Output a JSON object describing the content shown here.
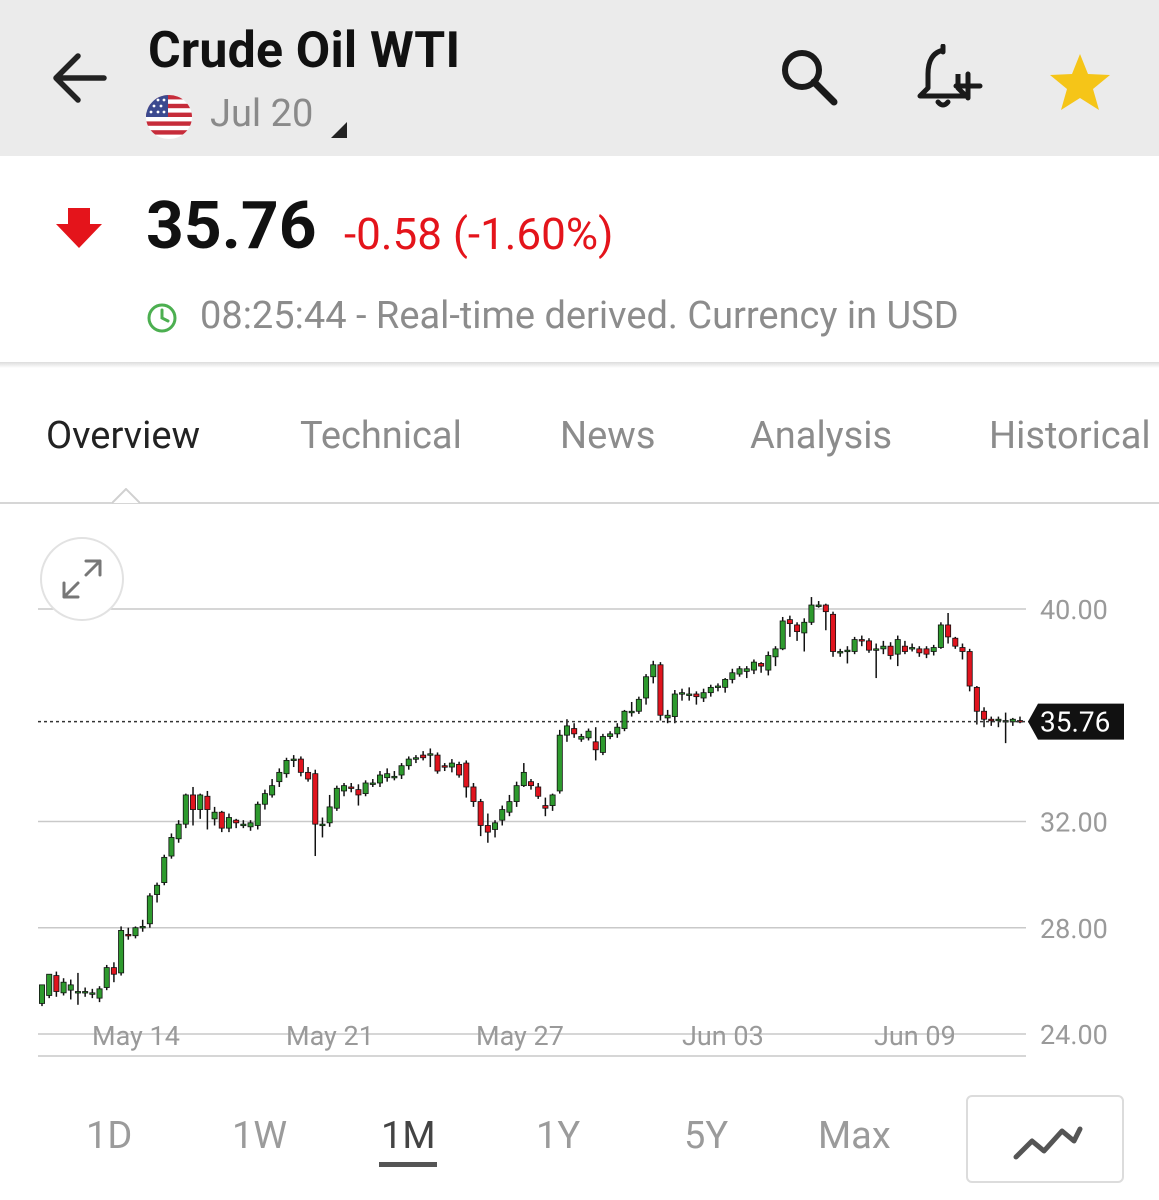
{
  "header": {
    "title": "Crude Oil WTI",
    "contract": "Jul 20",
    "icons": [
      "back-arrow-icon",
      "us-flag-icon",
      "search-icon",
      "bell-plus-icon",
      "star-icon"
    ],
    "star_color": "#f5c518"
  },
  "quote": {
    "price": "35.76",
    "change": "-0.58 (-1.60%)",
    "status": "08:25:44 - Real-time derived. Currency in USD",
    "change_color": "#e4141b",
    "clock_color": "#4caf50"
  },
  "tabs": [
    "Overview",
    "Technical",
    "News",
    "Analysis",
    "Historical"
  ],
  "active_tab": "Overview",
  "ranges": [
    "1D",
    "1W",
    "1M",
    "1Y",
    "5Y",
    "Max"
  ],
  "active_range": "1M",
  "chart_data": {
    "type": "candlestick",
    "y_axis": {
      "ticks": [
        "40.00",
        "32.00",
        "28.00",
        "24.00"
      ],
      "ylim": [
        24,
        40.5
      ]
    },
    "x_axis": {
      "ticks": [
        "May 14",
        "May 21",
        "May 27",
        "Jun 03",
        "Jun 09"
      ]
    },
    "last_price_label": "35.76",
    "up_color": "#2e9a2e",
    "down_color": "#e0141e",
    "candles": [
      [
        25.15,
        25.85,
        25.8,
        25.05
      ],
      [
        25.45,
        26.25,
        26.2,
        25.35
      ],
      [
        26.2,
        25.6,
        26.35,
        25.4
      ],
      [
        25.55,
        25.95,
        26.1,
        25.45
      ],
      [
        25.65,
        25.85,
        26.05,
        25.3
      ],
      [
        25.55,
        25.6,
        26.3,
        25.1
      ],
      [
        25.55,
        25.6,
        25.75,
        25.4
      ],
      [
        25.5,
        25.55,
        25.7,
        25.35
      ],
      [
        25.35,
        25.7,
        25.8,
        25.2
      ],
      [
        25.75,
        26.5,
        26.6,
        25.65
      ],
      [
        26.5,
        26.25,
        26.7,
        25.95
      ],
      [
        26.3,
        27.9,
        28.05,
        26.2
      ],
      [
        27.75,
        27.7,
        28.0,
        27.55
      ],
      [
        27.7,
        28.0,
        28.05,
        27.6
      ],
      [
        28.05,
        28.05,
        28.3,
        27.85
      ],
      [
        28.15,
        29.2,
        29.3,
        28.0
      ],
      [
        29.25,
        29.6,
        29.7,
        28.95
      ],
      [
        29.7,
        30.65,
        30.75,
        29.6
      ],
      [
        30.7,
        31.4,
        31.55,
        30.6
      ],
      [
        31.35,
        31.9,
        32.05,
        31.2
      ],
      [
        31.9,
        33.0,
        33.05,
        31.75
      ],
      [
        33.0,
        32.45,
        33.3,
        31.85
      ],
      [
        32.45,
        33.0,
        33.05,
        32.1
      ],
      [
        32.95,
        32.45,
        33.15,
        31.7
      ],
      [
        32.1,
        32.35,
        32.55,
        31.85
      ],
      [
        32.35,
        31.75,
        32.4,
        31.6
      ],
      [
        31.75,
        32.15,
        32.3,
        31.6
      ],
      [
        32.05,
        31.95,
        32.1,
        31.75
      ],
      [
        31.9,
        31.9,
        32.05,
        31.75
      ],
      [
        31.8,
        31.95,
        32.05,
        31.65
      ],
      [
        31.85,
        32.65,
        32.75,
        31.7
      ],
      [
        32.65,
        33.05,
        33.2,
        32.45
      ],
      [
        33.0,
        33.35,
        33.6,
        32.9
      ],
      [
        33.5,
        33.85,
        34.0,
        33.3
      ],
      [
        33.8,
        34.3,
        34.4,
        33.65
      ],
      [
        34.3,
        34.35,
        34.5,
        34.05
      ],
      [
        34.35,
        33.85,
        34.45,
        33.7
      ],
      [
        33.85,
        33.6,
        34.05,
        33.5
      ],
      [
        33.8,
        31.9,
        33.95,
        30.7
      ],
      [
        31.9,
        31.9,
        32.15,
        31.4
      ],
      [
        31.95,
        32.55,
        33.0,
        31.8
      ],
      [
        32.5,
        33.25,
        33.35,
        32.4
      ],
      [
        33.15,
        33.35,
        33.45,
        32.95
      ],
      [
        33.3,
        33.25,
        33.45,
        33.1
      ],
      [
        33.2,
        33.0,
        33.4,
        32.6
      ],
      [
        33.05,
        33.45,
        33.55,
        32.95
      ],
      [
        33.45,
        33.45,
        33.6,
        33.3
      ],
      [
        33.45,
        33.75,
        33.9,
        33.3
      ],
      [
        33.65,
        33.8,
        34.0,
        33.5
      ],
      [
        33.7,
        33.7,
        33.9,
        33.55
      ],
      [
        33.75,
        34.1,
        34.2,
        33.6
      ],
      [
        34.1,
        34.35,
        34.45,
        33.95
      ],
      [
        34.35,
        34.4,
        34.5,
        34.2
      ],
      [
        34.5,
        34.4,
        34.65,
        34.3
      ],
      [
        34.5,
        34.55,
        34.75,
        34.05
      ],
      [
        34.5,
        33.9,
        34.6,
        33.8
      ],
      [
        34.1,
        34.05,
        34.2,
        33.9
      ],
      [
        34.05,
        34.2,
        34.35,
        33.85
      ],
      [
        34.15,
        33.75,
        34.25,
        33.65
      ],
      [
        34.2,
        33.3,
        34.3,
        32.9
      ],
      [
        33.3,
        32.75,
        33.45,
        32.55
      ],
      [
        32.75,
        31.85,
        32.85,
        31.45
      ],
      [
        31.85,
        31.6,
        32.3,
        31.2
      ],
      [
        31.7,
        31.95,
        32.05,
        31.4
      ],
      [
        32.05,
        32.45,
        32.6,
        31.85
      ],
      [
        32.35,
        32.75,
        33.0,
        32.2
      ],
      [
        32.75,
        33.35,
        33.5,
        32.55
      ],
      [
        33.35,
        33.85,
        34.2,
        33.3
      ],
      [
        33.5,
        33.35,
        33.6,
        33.2
      ],
      [
        33.3,
        32.95,
        33.45,
        32.85
      ],
      [
        32.6,
        32.5,
        32.9,
        32.2
      ],
      [
        32.6,
        33.0,
        33.05,
        32.4
      ],
      [
        33.15,
        35.25,
        35.45,
        33.05
      ],
      [
        35.25,
        35.6,
        35.85,
        35.0
      ],
      [
        35.5,
        35.3,
        35.7,
        35.15
      ],
      [
        35.1,
        35.2,
        35.3,
        35.0
      ],
      [
        35.15,
        35.4,
        35.5,
        35.05
      ],
      [
        35.0,
        34.7,
        35.55,
        34.3
      ],
      [
        34.6,
        35.2,
        35.3,
        34.5
      ],
      [
        35.2,
        35.3,
        35.4,
        35.1
      ],
      [
        35.3,
        35.55,
        35.7,
        35.15
      ],
      [
        35.5,
        36.15,
        36.2,
        35.4
      ],
      [
        36.1,
        36.15,
        36.5,
        35.95
      ],
      [
        36.15,
        36.6,
        36.7,
        36.05
      ],
      [
        36.65,
        37.45,
        37.55,
        36.4
      ],
      [
        37.45,
        37.9,
        38.05,
        37.2
      ],
      [
        37.9,
        36.0,
        38.0,
        35.8
      ],
      [
        35.9,
        36.0,
        36.2,
        35.7
      ],
      [
        35.95,
        36.8,
        36.95,
        35.7
      ],
      [
        36.8,
        36.85,
        37.0,
        36.55
      ],
      [
        36.8,
        36.8,
        37.05,
        36.55
      ],
      [
        36.8,
        36.7,
        36.9,
        36.4
      ],
      [
        36.65,
        36.85,
        37.0,
        36.5
      ],
      [
        36.85,
        37.05,
        37.15,
        36.7
      ],
      [
        37.1,
        37.1,
        37.2,
        36.9
      ],
      [
        37.05,
        37.35,
        37.4,
        36.85
      ],
      [
        37.35,
        37.6,
        37.75,
        37.2
      ],
      [
        37.55,
        37.75,
        37.85,
        37.45
      ],
      [
        37.65,
        37.75,
        37.85,
        37.4
      ],
      [
        37.7,
        38.0,
        38.1,
        37.55
      ],
      [
        37.95,
        37.85,
        38.0,
        37.6
      ],
      [
        37.7,
        38.25,
        38.4,
        37.5
      ],
      [
        38.2,
        38.5,
        38.6,
        37.85
      ],
      [
        38.5,
        39.55,
        39.7,
        38.45
      ],
      [
        39.6,
        39.45,
        39.75,
        38.95
      ],
      [
        39.4,
        39.15,
        39.5,
        38.8
      ],
      [
        39.1,
        39.5,
        39.65,
        38.4
      ],
      [
        39.5,
        40.15,
        40.45,
        39.4
      ],
      [
        40.1,
        40.15,
        40.3,
        40.05
      ],
      [
        40.15,
        39.9,
        40.2,
        39.2
      ],
      [
        39.8,
        38.4,
        39.9,
        38.2
      ],
      [
        38.4,
        38.4,
        38.5,
        38.2
      ],
      [
        38.4,
        38.45,
        38.6,
        37.95
      ],
      [
        38.4,
        38.85,
        38.95,
        38.3
      ],
      [
        38.85,
        38.8,
        39.0,
        38.6
      ],
      [
        38.8,
        38.45,
        38.9,
        38.35
      ],
      [
        38.45,
        38.5,
        38.7,
        37.4
      ],
      [
        38.5,
        38.6,
        38.8,
        38.3
      ],
      [
        38.6,
        38.25,
        38.75,
        38.1
      ],
      [
        38.3,
        38.85,
        39.0,
        37.85
      ],
      [
        38.6,
        38.4,
        38.8,
        38.3
      ],
      [
        38.5,
        38.55,
        38.7,
        38.4
      ],
      [
        38.5,
        38.35,
        38.6,
        38.2
      ],
      [
        38.5,
        38.3,
        38.6,
        38.15
      ],
      [
        38.4,
        38.55,
        38.65,
        38.25
      ],
      [
        38.55,
        39.4,
        39.5,
        38.5
      ],
      [
        39.4,
        38.95,
        39.85,
        38.7
      ],
      [
        38.9,
        38.6,
        38.95,
        38.5
      ],
      [
        38.55,
        38.4,
        38.7,
        38.1
      ],
      [
        38.4,
        37.1,
        38.5,
        36.9
      ],
      [
        37.05,
        36.15,
        37.1,
        35.65
      ],
      [
        36.15,
        35.85,
        36.3,
        35.55
      ],
      [
        35.85,
        35.8,
        35.95,
        35.6
      ],
      [
        35.8,
        35.85,
        35.95,
        35.55
      ],
      [
        35.8,
        35.8,
        36.1,
        34.95
      ],
      [
        35.75,
        35.85,
        35.9,
        35.6
      ],
      [
        35.8,
        35.76,
        35.95,
        35.7
      ]
    ]
  }
}
